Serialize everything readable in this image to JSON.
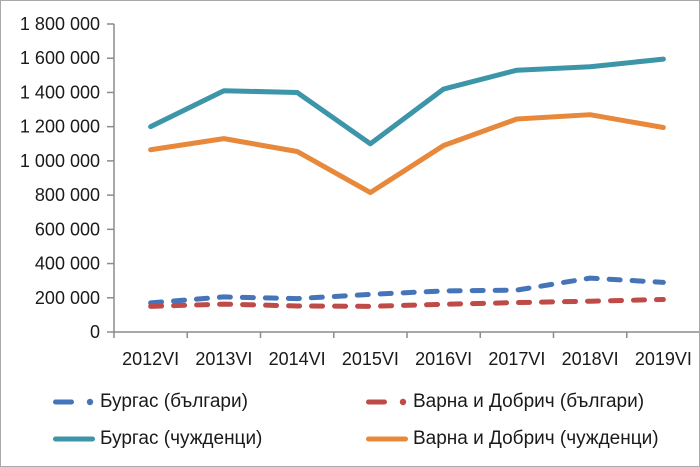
{
  "window": {
    "background": "#FFFFFF",
    "border_color": "#A9A9A9"
  },
  "chart_data": {
    "type": "line",
    "title": "",
    "categories": [
      "2012VI",
      "2013VI",
      "2014VI",
      "2015VI",
      "2016VI",
      "2017VI",
      "2018VI",
      "2019VI"
    ],
    "series": [
      {
        "name": "Бургас (българи)",
        "color": "#4674B8",
        "style": "dashed",
        "values": [
          170000,
          205000,
          195000,
          220000,
          240000,
          245000,
          315000,
          290000
        ]
      },
      {
        "name": "Варна и Добрич (българи)",
        "color": "#BE4B48",
        "style": "dashed",
        "values": [
          150000,
          163000,
          152000,
          150000,
          162000,
          172000,
          180000,
          190000
        ]
      },
      {
        "name": "Бургас (чужденци)",
        "color": "#3D95A9",
        "style": "solid",
        "values": [
          1200000,
          1410000,
          1400000,
          1100000,
          1420000,
          1530000,
          1550000,
          1595000
        ]
      },
      {
        "name": "Варна и Добрич (чужденци)",
        "color": "#E8883A",
        "style": "solid",
        "values": [
          1065000,
          1130000,
          1055000,
          815000,
          1090000,
          1245000,
          1270000,
          1195000
        ]
      }
    ],
    "y_axis": {
      "min": 0,
      "max": 1800000,
      "step": 200000,
      "tick_labels": [
        "0",
        "200 000",
        "400 000",
        "600 000",
        "800 000",
        "1 000 000",
        "1 200 000",
        "1 400 000",
        "1 600 000",
        "1 800 000"
      ]
    },
    "x_axis": {
      "tick_labels": [
        "2012VI",
        "2013VI",
        "2014VI",
        "2015VI",
        "2016VI",
        "2017VI",
        "2018VI",
        "2019VI"
      ]
    },
    "legend_position": "bottom",
    "grid": false,
    "axis_color": "#8C8C8C"
  }
}
